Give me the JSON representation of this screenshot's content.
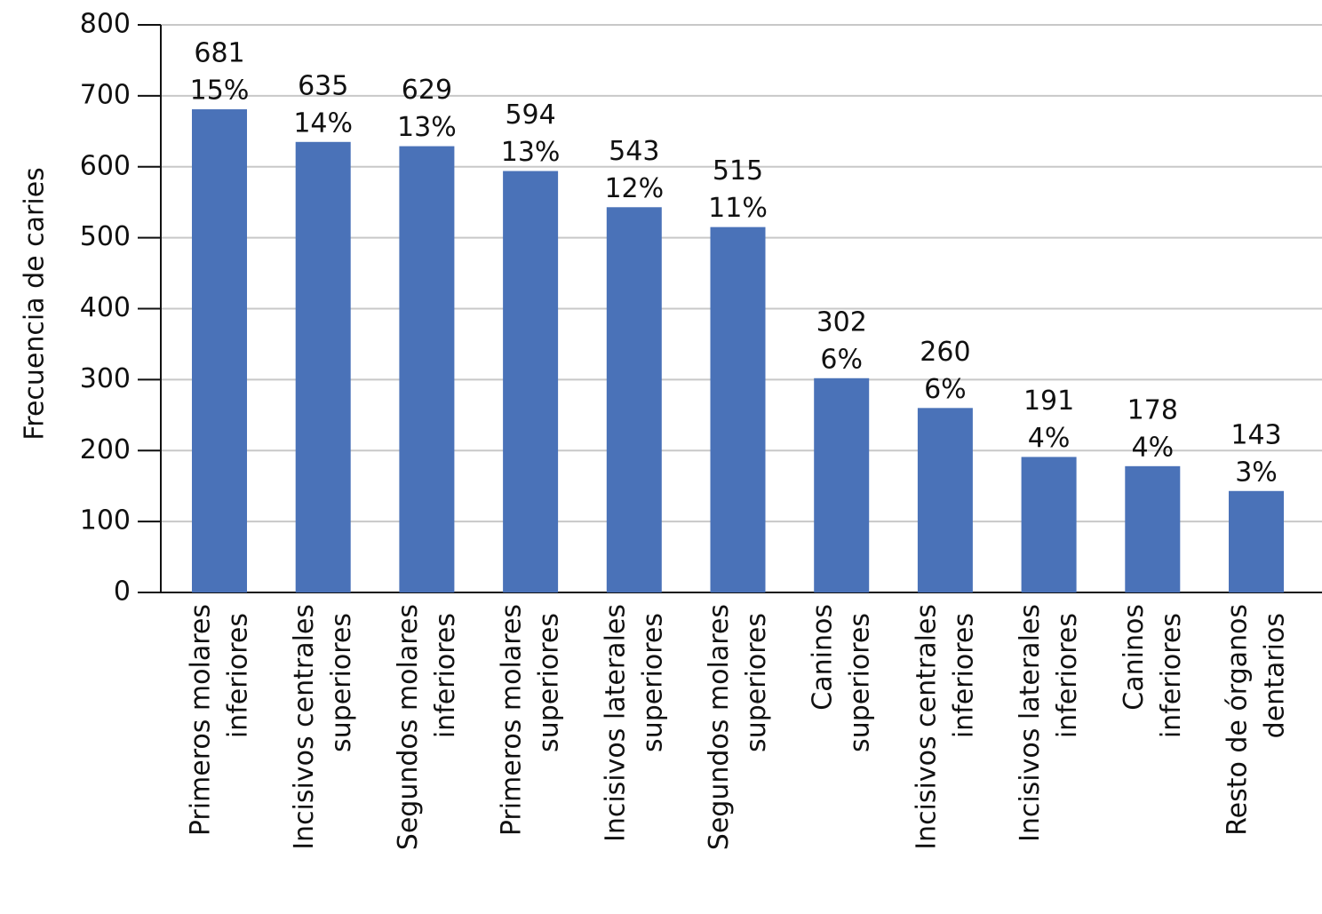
{
  "chart_data": {
    "type": "bar",
    "ylabel": "Frecuencia de caries",
    "xlabel": "",
    "ylim": [
      0,
      800
    ],
    "yticks": [
      0,
      100,
      200,
      300,
      400,
      500,
      600,
      700,
      800
    ],
    "grid": true,
    "bar_color": "#4A72B8",
    "categories": [
      [
        "Primeros molares",
        "inferiores"
      ],
      [
        "Incisivos centrales",
        "superiores"
      ],
      [
        "Segundos molares",
        "inferiores"
      ],
      [
        "Primeros molares",
        "superiores"
      ],
      [
        "Incisivos laterales",
        "superiores"
      ],
      [
        "Segundos molares",
        "superiores"
      ],
      [
        "Caninos",
        "superiores"
      ],
      [
        "Incisivos centrales",
        "inferiores"
      ],
      [
        "Incisivos laterales",
        "inferiores"
      ],
      [
        "Caninos",
        "inferiores"
      ],
      [
        "Resto de órganos",
        "dentarios"
      ]
    ],
    "values": [
      681,
      635,
      629,
      594,
      543,
      515,
      302,
      260,
      191,
      178,
      143
    ],
    "value_labels": [
      "681",
      "635",
      "629",
      "594",
      "543",
      "515",
      "302",
      "260",
      "191",
      "178",
      "143"
    ],
    "percent_labels": [
      "15%",
      "14%",
      "13%",
      "13%",
      "12%",
      "11%",
      "6%",
      "6%",
      "4%",
      "4%",
      "3%"
    ]
  }
}
